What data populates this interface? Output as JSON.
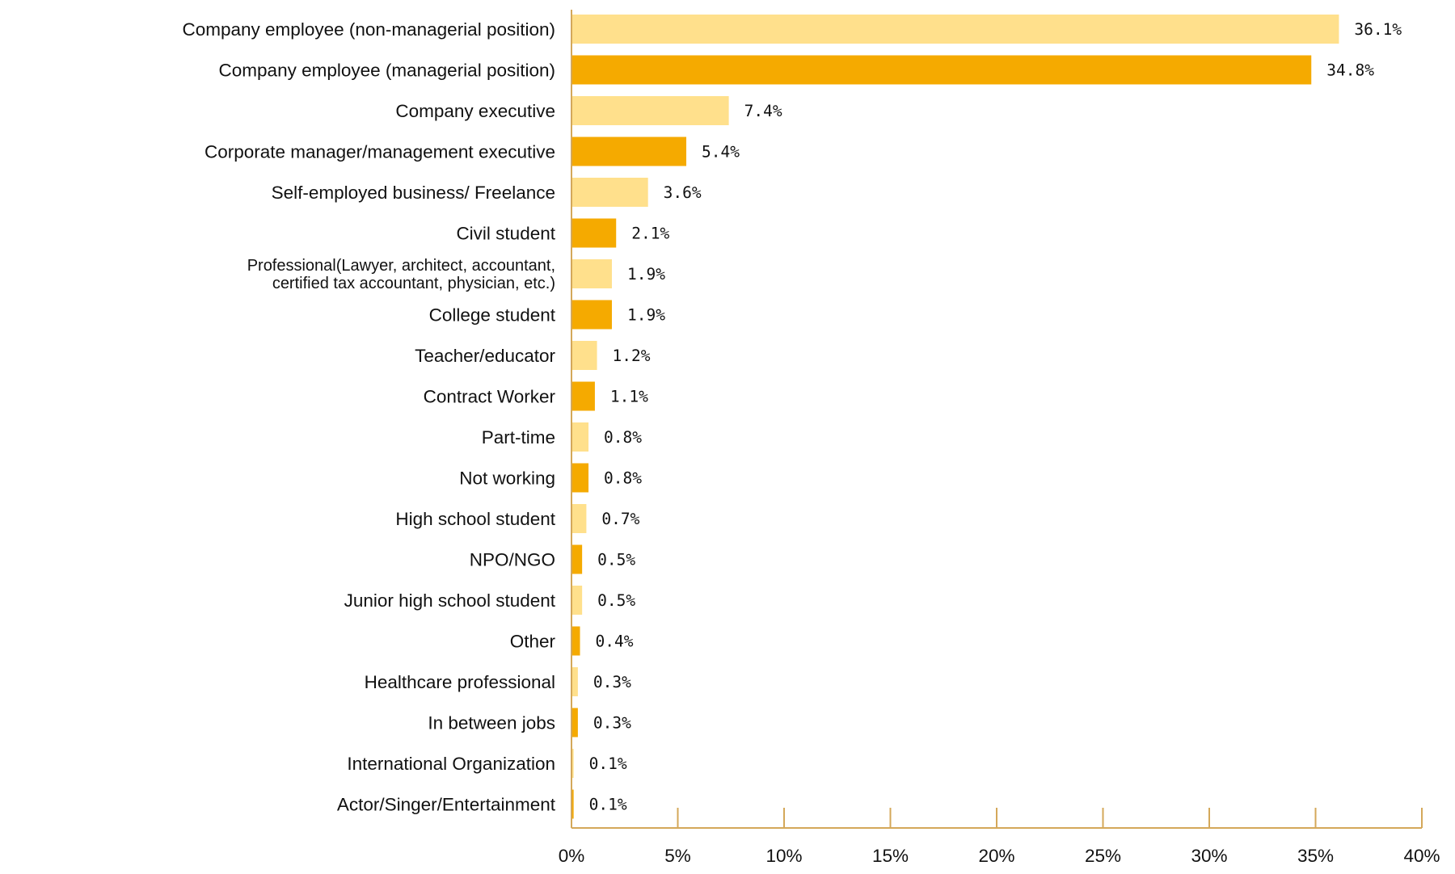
{
  "chart_data": {
    "type": "bar",
    "orientation": "horizontal",
    "categories": [
      [
        "Company employee (non-managerial position)"
      ],
      [
        "Company employee (managerial position)"
      ],
      [
        "Company executive"
      ],
      [
        "Corporate manager/management executive"
      ],
      [
        "Self-employed business/ Freelance"
      ],
      [
        "Civil student"
      ],
      [
        "Professional(Lawyer, architect, accountant,",
        "certified tax accountant, physician, etc.)"
      ],
      [
        "College student"
      ],
      [
        "Teacher/educator"
      ],
      [
        "Contract Worker"
      ],
      [
        "Part-time"
      ],
      [
        "Not working"
      ],
      [
        "High school student"
      ],
      [
        "NPO/NGO"
      ],
      [
        "Junior high school student"
      ],
      [
        "Other"
      ],
      [
        "Healthcare professional"
      ],
      [
        "In between jobs"
      ],
      [
        "International Organization"
      ],
      [
        "Actor/Singer/Entertainment"
      ]
    ],
    "values": [
      36.1,
      34.8,
      7.4,
      5.4,
      3.6,
      2.1,
      1.9,
      1.9,
      1.2,
      1.1,
      0.8,
      0.8,
      0.7,
      0.5,
      0.5,
      0.4,
      0.3,
      0.3,
      0.1,
      0.1
    ],
    "value_labels": [
      "36.1%",
      "34.8%",
      "7.4%",
      "5.4%",
      "3.6%",
      "2.1%",
      "1.9%",
      "1.9%",
      "1.2%",
      "1.1%",
      "0.8%",
      "0.8%",
      "0.7%",
      "0.5%",
      "0.5%",
      "0.4%",
      "0.3%",
      "0.3%",
      "0.1%",
      "0.1%"
    ],
    "xlim": [
      0,
      40
    ],
    "xticks": [
      0,
      5,
      10,
      15,
      20,
      25,
      30,
      35,
      40
    ],
    "xtick_labels": [
      "0%",
      "5%",
      "10%",
      "15%",
      "20%",
      "25%",
      "30%",
      "35%",
      "40%"
    ],
    "grid": false,
    "legend": "none",
    "colors": {
      "light": "#FFE08C",
      "dark": "#F5AA00",
      "axis": "#D4A85A",
      "text": "#111111"
    },
    "title": "",
    "xlabel": "",
    "ylabel": ""
  }
}
